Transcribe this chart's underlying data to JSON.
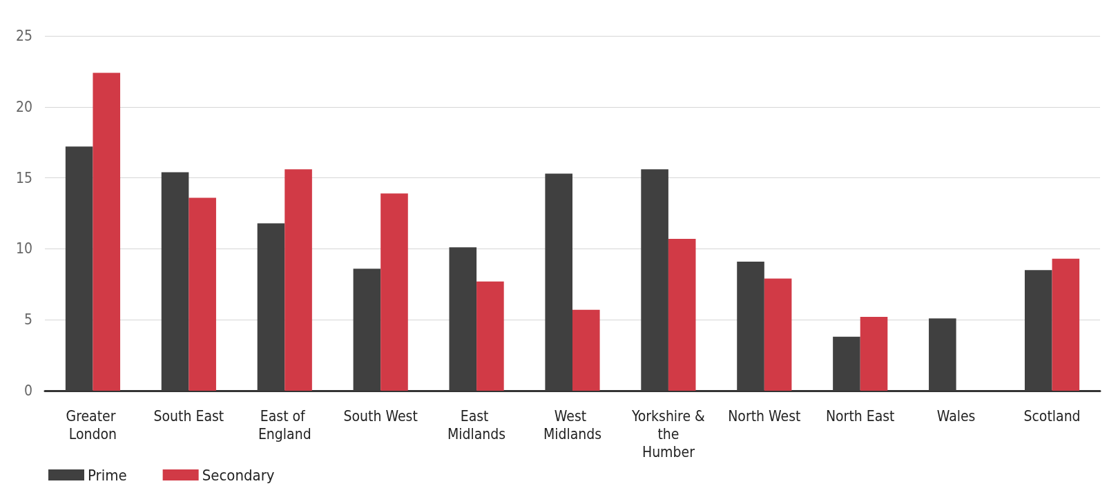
{
  "chart_data": {
    "type": "bar",
    "categories": [
      "Greater London",
      "South East",
      "East of England",
      "South West",
      "East Midlands",
      "West Midlands",
      "Yorkshire & the Humber",
      "North West",
      "North East",
      "Wales",
      "Scotland"
    ],
    "series": [
      {
        "name": "Prime",
        "color": "#404040",
        "values": [
          17.2,
          15.4,
          11.8,
          8.6,
          10.1,
          15.3,
          15.6,
          9.1,
          3.8,
          5.1,
          8.5
        ]
      },
      {
        "name": "Secondary",
        "color": "#d13a46",
        "values": [
          22.4,
          13.6,
          15.6,
          13.9,
          7.7,
          5.7,
          10.7,
          7.9,
          5.2,
          null,
          9.3
        ]
      }
    ],
    "ylim": [
      0,
      25
    ],
    "yticks": [
      0,
      5,
      10,
      15,
      20,
      25
    ],
    "grid": "y",
    "legend": "bottom left"
  }
}
